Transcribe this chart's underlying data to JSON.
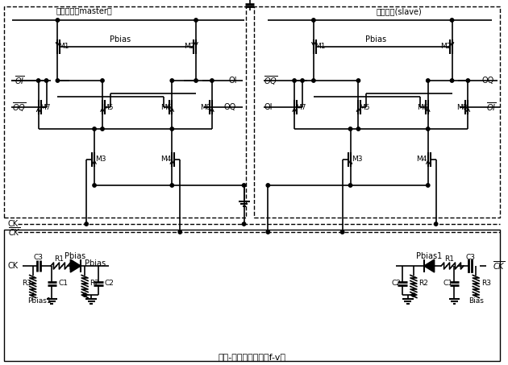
{
  "fig_width": 6.3,
  "fig_height": 4.53,
  "master_label": "主锁存器（master）",
  "slave_label": "从锁存器(slave)",
  "fv_label": "频率-电压转换电路（f-v）",
  "bg_color": "#ffffff"
}
